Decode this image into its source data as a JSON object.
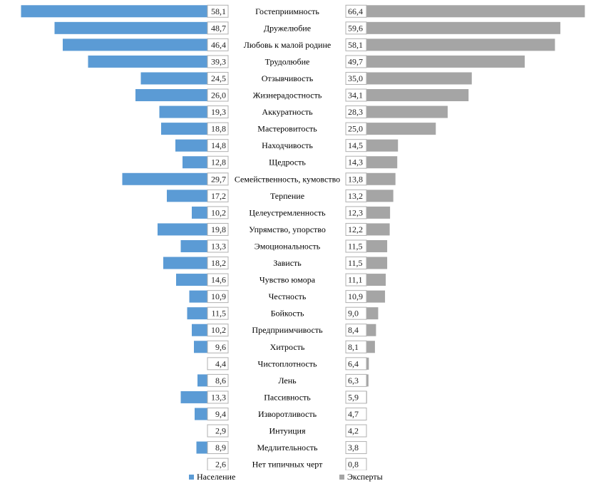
{
  "chart_data": {
    "type": "bar",
    "orientation": "horizontal-butterfly",
    "categories": [
      "Гостеприимность",
      "Дружелюбие",
      "Любовь к малой родине",
      "Трудолюбие",
      "Отзывчивость",
      "Жизнерадостность",
      "Аккуратность",
      "Мастеровитость",
      "Находчивость",
      "Щедрость",
      "Семейственность, кумовство",
      "Терпение",
      "Целеустремленность",
      "Упрямство, упорство",
      "Эмоциональность",
      "Зависть",
      "Чувство юмора",
      "Честность",
      "Бойкость",
      "Предприимчивость",
      "Хитрость",
      "Чистоплотность",
      "Лень",
      "Пассивность",
      "Изворотливость",
      "Интуиция",
      "Медлительность",
      "Нет типичных черт"
    ],
    "series": [
      {
        "name": "Население",
        "color": "#5b9bd5",
        "values": [
          58.1,
          48.7,
          46.4,
          39.3,
          24.5,
          26.0,
          19.3,
          18.8,
          14.8,
          12.8,
          29.7,
          17.2,
          10.2,
          19.8,
          13.3,
          18.2,
          14.6,
          10.9,
          11.5,
          10.2,
          9.6,
          4.4,
          8.6,
          13.3,
          9.4,
          2.9,
          8.9,
          2.6
        ],
        "labels": [
          "58,1",
          "48,7",
          "46,4",
          "39,3",
          "24,5",
          "26,0",
          "19,3",
          "18,8",
          "14,8",
          "12,8",
          "29,7",
          "17,2",
          "10,2",
          "19,8",
          "13,3",
          "18,2",
          "14,6",
          "10,9",
          "11,5",
          "10,2",
          "9,6",
          "4,4",
          "8,6",
          "13,3",
          "9,4",
          "2,9",
          "8,9",
          "2,6"
        ]
      },
      {
        "name": "Эксперты",
        "color": "#a5a5a5",
        "values": [
          66.4,
          59.6,
          58.1,
          49.7,
          35.0,
          34.1,
          28.3,
          25.0,
          14.5,
          14.3,
          13.8,
          13.2,
          12.3,
          12.2,
          11.5,
          11.5,
          11.1,
          10.9,
          9.0,
          8.4,
          8.1,
          6.4,
          6.3,
          5.9,
          4.7,
          4.2,
          3.8,
          0.8
        ],
        "labels": [
          "66,4",
          "59,6",
          "58,1",
          "49,7",
          "35,0",
          "34,1",
          "28,3",
          "25,0",
          "14,5",
          "14,3",
          "13,8",
          "13,2",
          "12,3",
          "12,2",
          "11,5",
          "11,5",
          "11,1",
          "10,9",
          "9,0",
          "8,4",
          "8,1",
          "6,4",
          "6,3",
          "5,9",
          "4,7",
          "4,2",
          "3,8",
          "0,8"
        ]
      }
    ],
    "legend": {
      "position": "bottom",
      "items": [
        "Население",
        "Эксперты"
      ]
    }
  }
}
